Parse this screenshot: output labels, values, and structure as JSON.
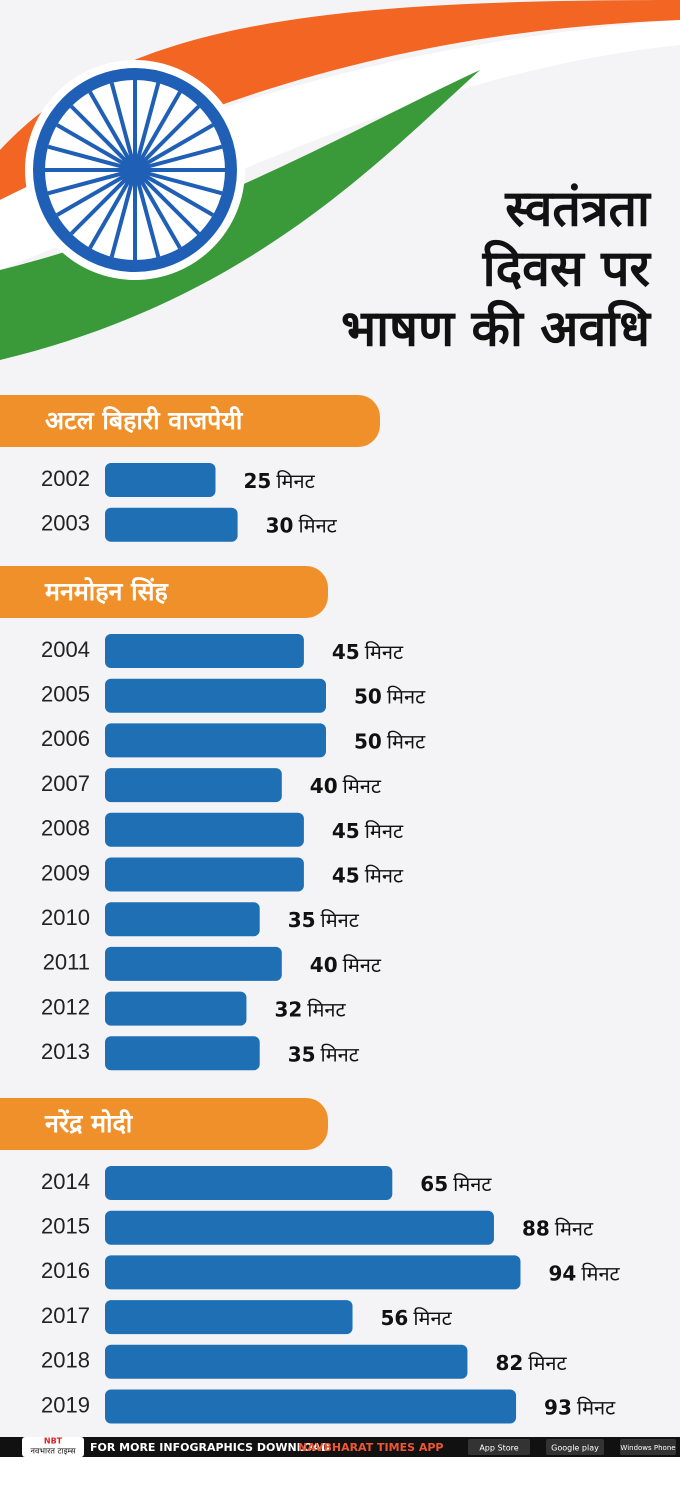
{
  "chart_data": {
    "type": "bar",
    "title": [
      "स्वतंत्रता",
      "दिवस पर",
      "भाषण की अवधि"
    ],
    "unit": "मिनट",
    "color": "#1f6fb5",
    "groups": [
      {
        "name": "अटल बिहारी वाजपेयी",
        "categories": [
          "2002",
          "2003"
        ],
        "values": [
          25,
          30
        ]
      },
      {
        "name": "मनमोहन सिंह",
        "categories": [
          "2004",
          "2005",
          "2006",
          "2007",
          "2008",
          "2009",
          "2010",
          "2011",
          "2012",
          "2013"
        ],
        "values": [
          45,
          50,
          50,
          40,
          45,
          45,
          35,
          40,
          32,
          35
        ]
      },
      {
        "name": "नरेंद्र मोदी",
        "categories": [
          "2014",
          "2015",
          "2016",
          "2017",
          "2018",
          "2019"
        ],
        "values": [
          65,
          88,
          94,
          56,
          82,
          93
        ]
      }
    ]
  },
  "footer": {
    "logo": "NBT",
    "logo_sub": "नवभारत टाइम्स",
    "text": "FOR MORE INFOGRAPHICS DOWNLOAD",
    "app": "NAVBHARAT TIMES APP",
    "stores": [
      "App Store",
      "Google play",
      "Windows Phone"
    ]
  }
}
